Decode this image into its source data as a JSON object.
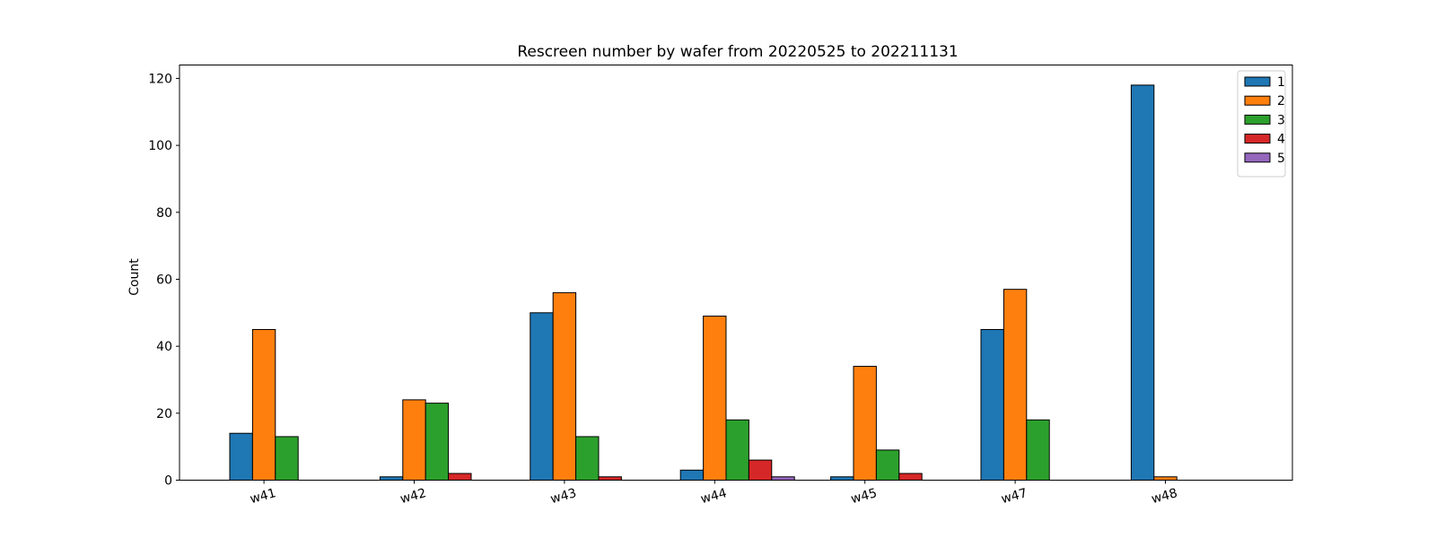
{
  "chart_data": {
    "type": "bar",
    "title": "Rescreen number  by wafer from 20220525 to 202211131",
    "xlabel": "",
    "ylabel": "Count",
    "ylim": [
      0,
      124
    ],
    "yticks": [
      0,
      20,
      40,
      60,
      80,
      100,
      120
    ],
    "categories": [
      "w41",
      "w42",
      "w43",
      "w44",
      "w45",
      "w47",
      "w48"
    ],
    "series": [
      {
        "name": "1",
        "color": "#1f77b4",
        "values": [
          14,
          1,
          50,
          3,
          1,
          45,
          118
        ]
      },
      {
        "name": "2",
        "color": "#ff7f0e",
        "values": [
          45,
          24,
          56,
          49,
          34,
          57,
          1
        ]
      },
      {
        "name": "3",
        "color": "#2ca02c",
        "values": [
          13,
          23,
          13,
          18,
          9,
          18,
          0
        ]
      },
      {
        "name": "4",
        "color": "#d62728",
        "values": [
          0,
          2,
          1,
          6,
          2,
          0,
          0
        ]
      },
      {
        "name": "5",
        "color": "#9467bd",
        "values": [
          0,
          0,
          0,
          1,
          0,
          0,
          0
        ]
      }
    ],
    "grid": false,
    "legend_position": "top-right"
  }
}
